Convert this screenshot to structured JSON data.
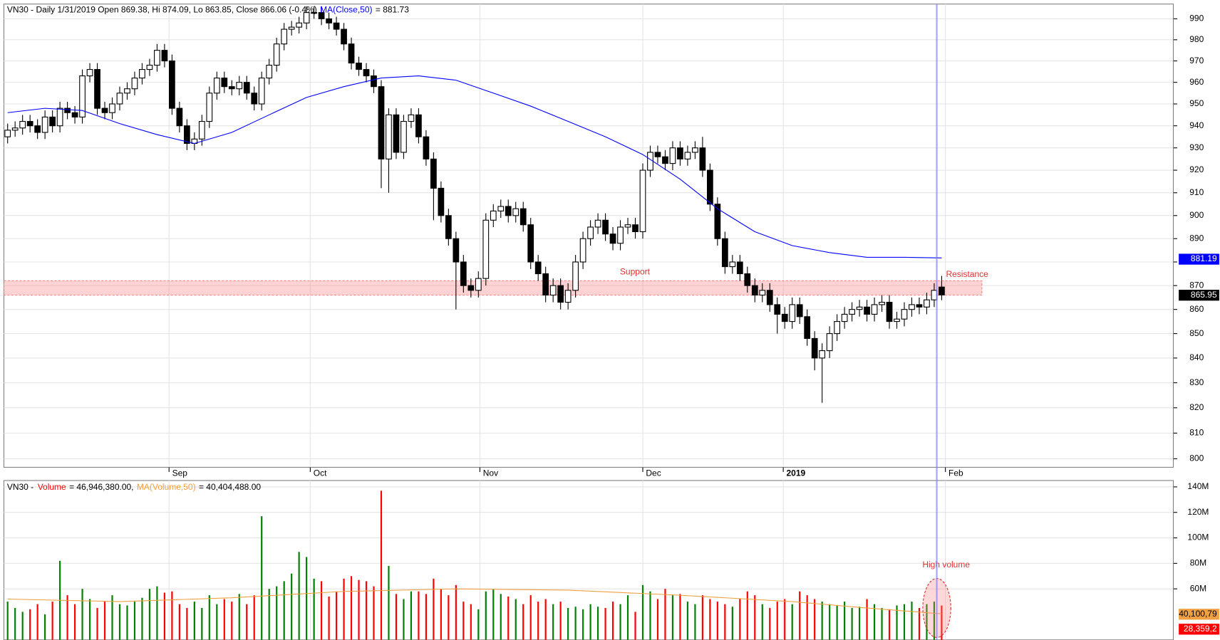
{
  "chart_data": [
    {
      "type": "candlestick",
      "title": "VN30 - Daily 1/31/2019 Open 869.38, Hi 874.09, Lo 863.85, Close 866.06 (-0.4%)",
      "open": [
        935,
        938,
        939,
        942,
        940,
        937,
        944,
        940,
        948,
        946,
        944,
        963,
        966,
        948,
        946,
        950,
        955,
        957,
        962,
        966,
        968,
        975,
        970,
        948,
        940,
        932,
        934,
        942,
        955,
        962,
        958,
        957,
        960,
        955,
        950,
        962,
        968,
        978,
        985,
        986,
        988,
        993,
        993,
        990,
        988,
        985,
        978,
        969,
        966,
        963,
        958,
        925,
        945,
        928,
        942,
        945,
        935,
        925,
        912,
        900,
        890,
        880,
        870,
        868,
        873,
        898,
        902,
        904,
        900,
        903,
        896,
        880,
        875,
        866,
        870,
        863,
        868,
        880,
        890,
        895,
        898,
        892,
        888,
        895,
        896,
        893,
        920,
        928,
        926,
        923,
        930,
        925,
        928,
        930,
        920,
        905,
        890,
        878,
        880,
        875,
        870,
        866,
        868,
        862,
        858,
        855,
        862,
        857,
        848,
        840,
        843,
        850,
        855,
        858,
        860,
        861,
        858,
        862,
        863,
        855,
        856,
        860,
        862,
        861,
        864,
        869.38
      ],
      "high": [
        941,
        942,
        945,
        945,
        943,
        947,
        947,
        951,
        951,
        949,
        966,
        969,
        969,
        951,
        953,
        958,
        960,
        965,
        969,
        971,
        978,
        978,
        973,
        951,
        943,
        937,
        945,
        958,
        965,
        965,
        961,
        963,
        963,
        958,
        965,
        971,
        981,
        988,
        989,
        991,
        996,
        996,
        996,
        993,
        991,
        988,
        981,
        972,
        969,
        966,
        961,
        948,
        948,
        945,
        948,
        948,
        938,
        928,
        915,
        903,
        893,
        883,
        873,
        876,
        901,
        905,
        907,
        907,
        906,
        906,
        899,
        883,
        878,
        873,
        873,
        871,
        883,
        893,
        898,
        901,
        901,
        895,
        898,
        899,
        899,
        923,
        931,
        931,
        929,
        933,
        933,
        931,
        933,
        935,
        923,
        908,
        893,
        883,
        883,
        878,
        873,
        871,
        871,
        865,
        861,
        865,
        865,
        860,
        851,
        846,
        853,
        858,
        861,
        863,
        864,
        864,
        865,
        866,
        866,
        859,
        863,
        865,
        865,
        867,
        871,
        874.09
      ],
      "low": [
        932,
        935,
        936,
        937,
        934,
        934,
        937,
        937,
        943,
        941,
        941,
        960,
        945,
        943,
        943,
        947,
        952,
        954,
        959,
        963,
        965,
        967,
        945,
        937,
        929,
        929,
        931,
        939,
        952,
        955,
        954,
        954,
        952,
        947,
        947,
        959,
        965,
        975,
        982,
        983,
        985,
        990,
        987,
        985,
        982,
        975,
        966,
        963,
        960,
        955,
        912,
        910,
        925,
        925,
        939,
        932,
        922,
        898,
        897,
        887,
        860,
        867,
        865,
        865,
        870,
        895,
        899,
        897,
        897,
        893,
        877,
        872,
        863,
        863,
        860,
        860,
        865,
        877,
        887,
        892,
        889,
        885,
        885,
        892,
        890,
        890,
        917,
        923,
        920,
        920,
        922,
        922,
        925,
        917,
        902,
        887,
        875,
        875,
        872,
        867,
        863,
        863,
        859,
        850,
        852,
        852,
        854,
        845,
        835,
        822,
        840,
        847,
        852,
        855,
        857,
        855,
        855,
        859,
        852,
        852,
        853,
        857,
        858,
        858,
        861,
        863.85
      ],
      "close": [
        938,
        939,
        942,
        940,
        937,
        944,
        940,
        948,
        946,
        944,
        963,
        966,
        948,
        946,
        950,
        955,
        957,
        962,
        966,
        968,
        975,
        970,
        948,
        940,
        932,
        934,
        942,
        955,
        962,
        958,
        957,
        960,
        955,
        950,
        962,
        968,
        978,
        985,
        986,
        988,
        993,
        993,
        990,
        988,
        985,
        978,
        969,
        966,
        963,
        958,
        925,
        945,
        928,
        942,
        945,
        935,
        925,
        912,
        900,
        890,
        880,
        870,
        868,
        873,
        898,
        902,
        904,
        900,
        903,
        896,
        880,
        875,
        866,
        870,
        863,
        868,
        880,
        890,
        895,
        898,
        892,
        888,
        895,
        896,
        893,
        920,
        928,
        926,
        923,
        930,
        925,
        928,
        930,
        920,
        905,
        890,
        878,
        880,
        875,
        870,
        866,
        868,
        862,
        858,
        855,
        862,
        857,
        848,
        840,
        843,
        850,
        855,
        858,
        860,
        861,
        858,
        862,
        863,
        855,
        856,
        860,
        862,
        861,
        864,
        868,
        866.06
      ],
      "up_color": "#ffffff",
      "down_color": "#000000",
      "ma": {
        "name": "MA(Close,50)",
        "last_label": "= 881.73",
        "color": "#0000ff",
        "x": [
          0,
          5,
          10,
          15,
          20,
          25,
          30,
          35,
          40,
          45,
          50,
          55,
          60,
          65,
          70,
          75,
          80,
          85,
          90,
          95,
          100,
          105,
          110,
          115,
          120,
          125
        ],
        "values": [
          946,
          948,
          947,
          941,
          936,
          932,
          937,
          945,
          953,
          958,
          962,
          963,
          961,
          955,
          949,
          942,
          935,
          927,
          916,
          903,
          893,
          887,
          884,
          882,
          882,
          881.73
        ]
      },
      "log": true,
      "ylim": [
        796.7,
        997.1
      ],
      "yticks": [
        800,
        810,
        820,
        830,
        840,
        850,
        860,
        870,
        880,
        890,
        900,
        910,
        920,
        930,
        940,
        950,
        960,
        970,
        980,
        990
      ],
      "xlim": [
        -0.5,
        156
      ],
      "xticks": [
        {
          "value": 21.6,
          "label": "Sep"
        },
        {
          "value": 40.5,
          "label": "Oct"
        },
        {
          "value": 63.2,
          "label": "Nov"
        },
        {
          "value": 85,
          "label": "Dec"
        },
        {
          "value": 103.8,
          "label": "2019"
        },
        {
          "value": 125.5,
          "label": "Feb"
        }
      ],
      "grid": true,
      "band": {
        "from": 866,
        "to": 872,
        "color": "#ff8080"
      },
      "annotations": [
        "Support",
        "Resistance"
      ],
      "markers": [
        {
          "value": 881.19,
          "label": "881.19",
          "color": "#0000ff"
        },
        {
          "value": 865.95,
          "label": "865.95",
          "color": "#000000"
        }
      ]
    },
    {
      "type": "bar",
      "title": "VN30 - ",
      "name": "Volume",
      "value_label": "= 46,946,380.00,",
      "values": [
        50000000,
        45000000,
        42000000,
        44000000,
        48000000,
        40000000,
        50000000,
        82000000,
        55000000,
        48000000,
        60000000,
        52000000,
        45000000,
        50000000,
        55000000,
        48000000,
        47000000,
        50000000,
        53000000,
        60000000,
        62000000,
        57000000,
        58000000,
        48000000,
        45000000,
        50000000,
        45000000,
        55000000,
        48000000,
        52000000,
        50000000,
        56000000,
        48000000,
        55000000,
        117000000,
        60000000,
        62000000,
        66000000,
        72000000,
        89000000,
        85000000,
        68000000,
        66000000,
        54000000,
        58000000,
        68000000,
        70000000,
        67000000,
        66000000,
        62000000,
        137000000,
        78000000,
        56000000,
        52000000,
        58000000,
        58000000,
        56000000,
        68000000,
        60000000,
        55000000,
        63000000,
        50000000,
        48000000,
        44000000,
        58000000,
        60000000,
        56000000,
        54000000,
        52000000,
        48000000,
        55000000,
        50000000,
        52000000,
        48000000,
        50000000,
        45000000,
        46000000,
        44000000,
        48000000,
        46000000,
        45000000,
        50000000,
        48000000,
        55000000,
        42000000,
        63000000,
        58000000,
        52000000,
        60000000,
        55000000,
        56000000,
        50000000,
        48000000,
        55000000,
        52000000,
        50000000,
        48000000,
        46000000,
        52000000,
        58000000,
        55000000,
        48000000,
        45000000,
        50000000,
        52000000,
        48000000,
        58000000,
        55000000,
        52000000,
        50000000,
        48000000,
        47000000,
        50000000,
        45000000,
        46000000,
        52000000,
        48000000,
        45000000,
        44000000,
        47000000,
        48000000,
        50000000,
        45000000,
        48000000,
        50000000,
        46946380
      ],
      "up_color": "#008000",
      "down_color": "#ff0000",
      "ma": {
        "name": "MA(Volume,50)",
        "last_label": "= 40,404,488.00",
        "color": "#f0a040",
        "x": [
          0,
          15,
          30,
          45,
          60,
          75,
          90,
          105,
          115,
          125
        ],
        "values": [
          52000000,
          50000000,
          53000000,
          58000000,
          60000000,
          59000000,
          55000000,
          50000000,
          45000000,
          40404488
        ]
      },
      "ylim": [
        20000000,
        145000000
      ],
      "yticks": [
        {
          "value": 60000000,
          "label": "60M"
        },
        {
          "value": 80000000,
          "label": "80M"
        },
        {
          "value": 100000000,
          "label": "100M"
        },
        {
          "value": 120000000,
          "label": "120M"
        },
        {
          "value": 140000000,
          "label": "140M"
        }
      ],
      "grid": true,
      "annotation": "High volume",
      "markers": [
        {
          "value": 40100790,
          "label": "40,100,79",
          "color": "#f0a040"
        },
        {
          "value": 28359200,
          "label": "28,359,2",
          "color": "#ff0000"
        }
      ]
    }
  ]
}
